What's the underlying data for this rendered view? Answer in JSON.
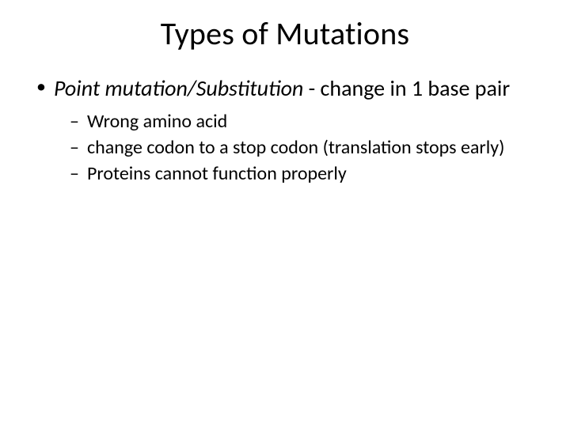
{
  "slide": {
    "title": "Types of Mutations",
    "background_color": "#ffffff",
    "text_color": "#000000",
    "title_fontsize": 40,
    "body_fontsize": 28,
    "sub_fontsize": 24,
    "bullet": {
      "term": "Point mutation/Substitution",
      "rest": " - change in 1 base pair",
      "sub": [
        "Wrong amino acid",
        "change codon to a stop codon (translation stops early)",
        "Proteins cannot function properly"
      ]
    }
  }
}
